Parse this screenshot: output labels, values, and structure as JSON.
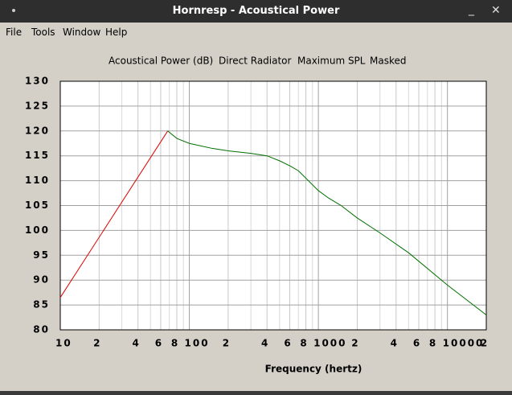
{
  "window": {
    "title": "Hornresp - Acoustical Power"
  },
  "menu": [
    "File",
    "Tools",
    "Window",
    "Help"
  ],
  "chart_data": {
    "type": "line",
    "title": [
      "Acoustical Power (dB)",
      "Direct Radiator",
      "Maximum SPL",
      "Masked"
    ],
    "x_label": "Frequency (hertz)",
    "xscale": "log",
    "xlim": [
      10,
      20000
    ],
    "ylim": [
      80,
      130
    ],
    "xticks": [
      10,
      {
        "value": 20,
        "label": "2"
      },
      {
        "value": 40,
        "label": "4"
      },
      {
        "value": 60,
        "label": "6"
      },
      {
        "value": 80,
        "label": "8"
      },
      100,
      {
        "value": 200,
        "label": "2"
      },
      {
        "value": 400,
        "label": "4"
      },
      {
        "value": 600,
        "label": "6"
      },
      {
        "value": 800,
        "label": "8"
      },
      1000,
      {
        "value": 2000,
        "label": "2"
      },
      {
        "value": 4000,
        "label": "4"
      },
      {
        "value": 6000,
        "label": "6"
      },
      {
        "value": 8000,
        "label": "8"
      },
      10000,
      {
        "value": 20000,
        "label": "2"
      }
    ],
    "minor_xticks": [
      30,
      50,
      70,
      90,
      300,
      500,
      700,
      900,
      3000,
      5000,
      7000,
      9000
    ],
    "yticks": [
      80,
      85,
      90,
      95,
      100,
      105,
      110,
      115,
      120,
      125,
      130
    ],
    "grid": true,
    "series": [
      {
        "color": "#e00000",
        "x": [
          10,
          68
        ],
        "values": [
          86.5,
          120
        ]
      },
      {
        "color": "#007000",
        "x": [
          68,
          80,
          100,
          150,
          200,
          300,
          400,
          500,
          600,
          700,
          800,
          1000,
          1200,
          1500,
          2000,
          3000,
          5000,
          10000,
          20000
        ],
        "values": [
          120,
          118.5,
          117.5,
          116.5,
          116,
          115.5,
          115,
          114,
          113,
          112,
          110.5,
          108,
          106.5,
          105,
          102.5,
          99.5,
          95.5,
          89,
          83
        ]
      }
    ]
  }
}
